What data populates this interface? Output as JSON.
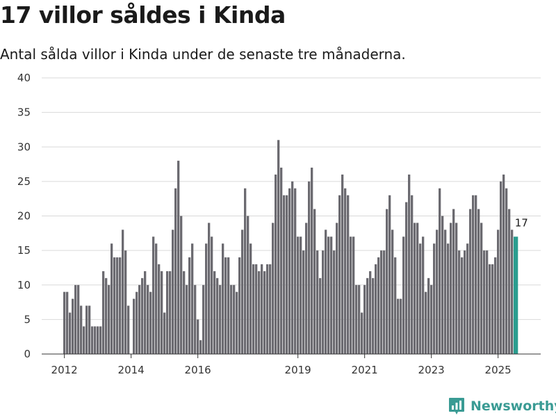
{
  "header": {
    "title": "17 villor såldes i Kinda",
    "subtitle": "Antal sålda villor i Kinda under de senaste tre månaderna."
  },
  "brand": {
    "name": "Newsworthy",
    "color": "#3a9b94"
  },
  "colors": {
    "bar": "#6b6a70",
    "highlight": "#2a9d8f",
    "grid": "#d9d9d9",
    "axis": "#333333"
  },
  "chart_data": {
    "type": "bar",
    "title": "17 villor såldes i Kinda",
    "subtitle": "Antal sålda villor i Kinda under de senaste tre månaderna.",
    "xlabel": "",
    "ylabel": "",
    "ylim": [
      0,
      40
    ],
    "yticks": [
      0,
      5,
      10,
      15,
      20,
      25,
      30,
      35,
      40
    ],
    "xtick_labels": [
      "2012",
      "2014",
      "2016",
      "2019",
      "2021",
      "2023",
      "2025"
    ],
    "grid": true,
    "highlight_annotation": "17",
    "start": "2012-01",
    "values": [
      9,
      9,
      6,
      8,
      10,
      10,
      7,
      4,
      7,
      7,
      4,
      4,
      4,
      4,
      12,
      11,
      10,
      16,
      14,
      14,
      14,
      18,
      15,
      7,
      0,
      8,
      9,
      10,
      11,
      12,
      10,
      9,
      17,
      16,
      13,
      12,
      6,
      12,
      12,
      18,
      24,
      28,
      20,
      12,
      10,
      14,
      16,
      10,
      5,
      2,
      10,
      16,
      19,
      17,
      12,
      11,
      10,
      16,
      14,
      14,
      10,
      10,
      9,
      14,
      18,
      24,
      20,
      16,
      13,
      13,
      12,
      13,
      12,
      13,
      13,
      19,
      26,
      31,
      27,
      23,
      23,
      24,
      25,
      24,
      17,
      17,
      15,
      19,
      25,
      27,
      21,
      15,
      11,
      15,
      18,
      17,
      17,
      15,
      19,
      23,
      26,
      24,
      23,
      17,
      17,
      10,
      10,
      6,
      10,
      11,
      12,
      11,
      13,
      14,
      15,
      15,
      21,
      23,
      18,
      14,
      8,
      8,
      17,
      22,
      26,
      23,
      19,
      19,
      16,
      17,
      9,
      11,
      10,
      16,
      18,
      24,
      20,
      18,
      16,
      19,
      21,
      19,
      15,
      14,
      15,
      16,
      21,
      23,
      23,
      21,
      19,
      15,
      15,
      13,
      13,
      14,
      18,
      25,
      26,
      24,
      21,
      18,
      17
    ]
  }
}
